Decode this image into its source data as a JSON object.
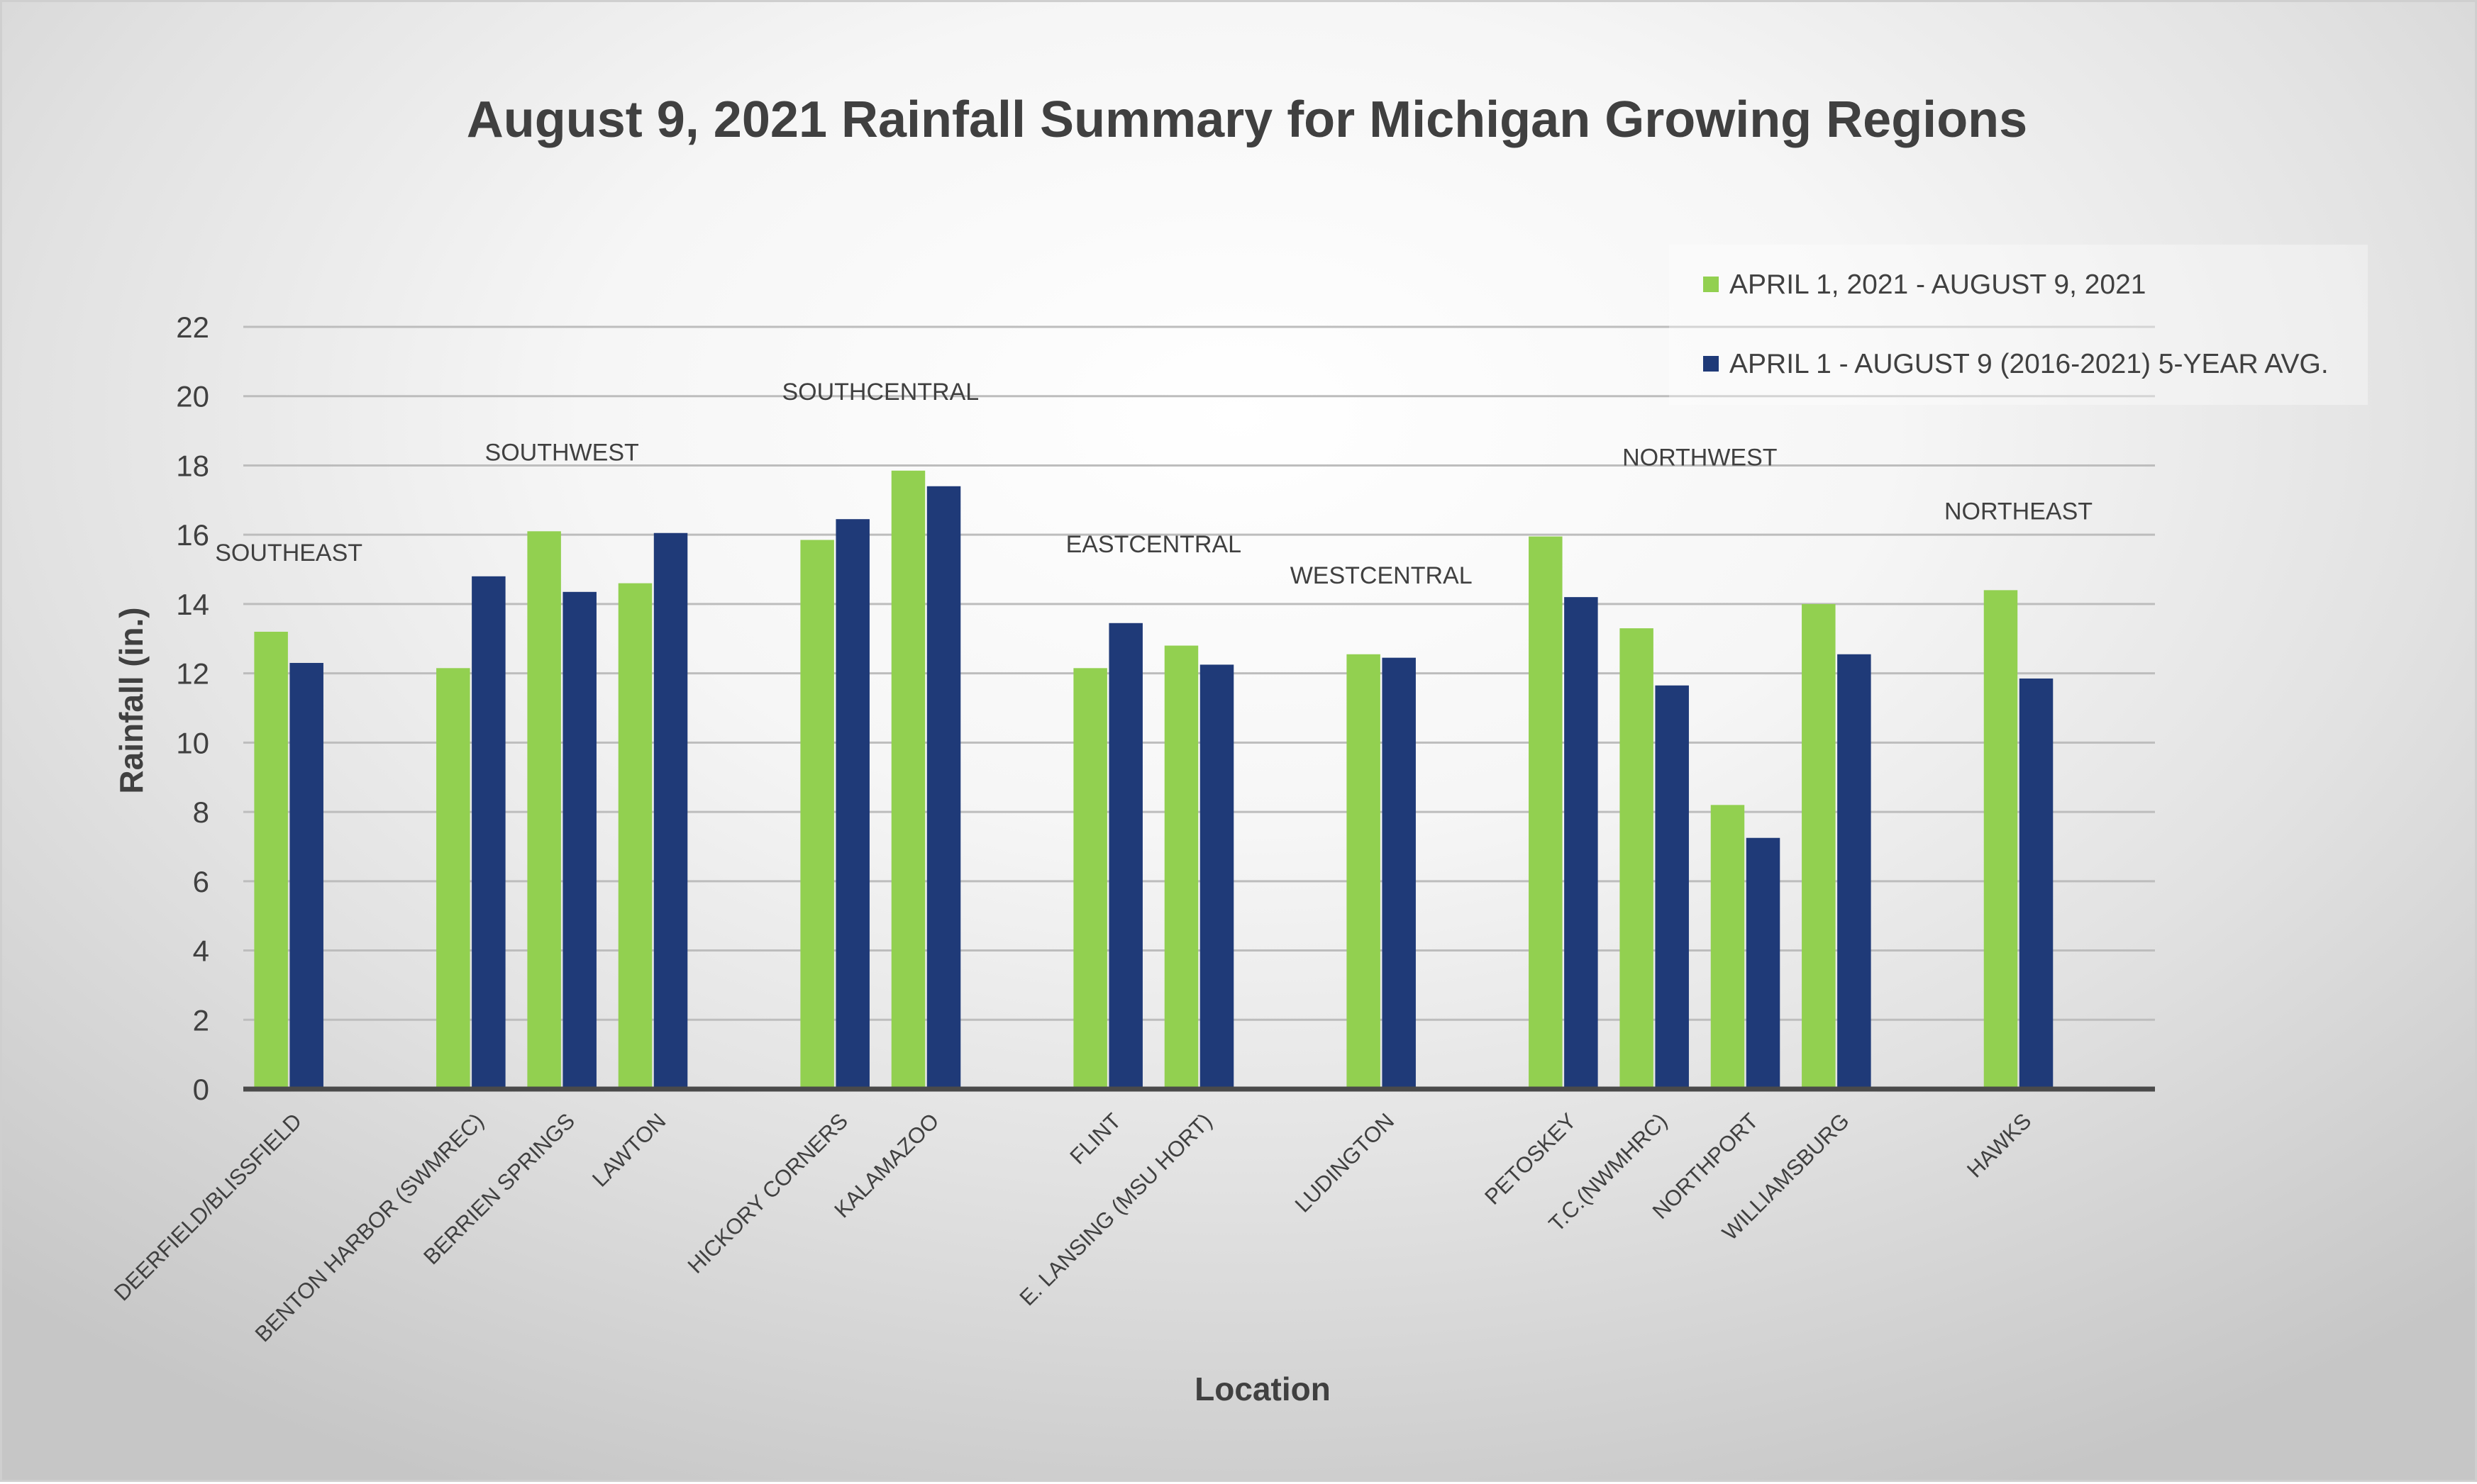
{
  "chart_data": {
    "type": "bar",
    "title": "August 9, 2021 Rainfall Summary for Michigan Growing Regions",
    "xlabel": "Location",
    "ylabel": "Rainfall (in.)",
    "ylim": [
      0,
      22
    ],
    "yticks": [
      0,
      2,
      4,
      6,
      8,
      10,
      12,
      14,
      16,
      18,
      20,
      22
    ],
    "grid": true,
    "legend_position": "top-right",
    "categories": [
      "DEERFIELD/BLISSFIELD",
      "BENTON HARBOR (SWMREC)",
      "BERRIEN SPRINGS",
      "LAWTON",
      "HICKORY CORNERS",
      "KALAMAZOO",
      "FLINT",
      "E. LANSING (MSU HORT)",
      "LUDINGTON",
      "PETOSKEY",
      "T.C.(NWMHRC)",
      "NORTHPORT",
      "WILLIAMSBURG",
      "HAWKS"
    ],
    "groups": [
      {
        "label": "SOUTHEAST",
        "members": [
          0
        ]
      },
      {
        "label": "SOUTHWEST",
        "members": [
          1,
          2,
          3
        ]
      },
      {
        "label": "SOUTHCENTRAL",
        "members": [
          4,
          5
        ]
      },
      {
        "label": "EASTCENTRAL",
        "members": [
          6,
          7
        ]
      },
      {
        "label": "WESTCENTRAL",
        "members": [
          8
        ]
      },
      {
        "label": "NORTHWEST",
        "members": [
          9,
          10,
          11,
          12
        ]
      },
      {
        "label": "NORTHEAST",
        "members": [
          13
        ]
      }
    ],
    "series": [
      {
        "name": "APRIL 1, 2021 - AUGUST 9, 2021",
        "color": "#92d050",
        "values": [
          13.2,
          12.15,
          16.1,
          14.6,
          15.85,
          17.85,
          12.15,
          12.8,
          12.55,
          15.95,
          13.3,
          8.2,
          14.0,
          14.4
        ]
      },
      {
        "name": "APRIL 1 - AUGUST 9 (2016-2021) 5-YEAR AVG.",
        "color": "#1f3a78",
        "values": [
          12.3,
          14.8,
          14.35,
          16.05,
          16.45,
          17.4,
          13.45,
          12.25,
          12.45,
          14.2,
          11.65,
          7.25,
          12.55,
          11.85
        ]
      }
    ]
  }
}
